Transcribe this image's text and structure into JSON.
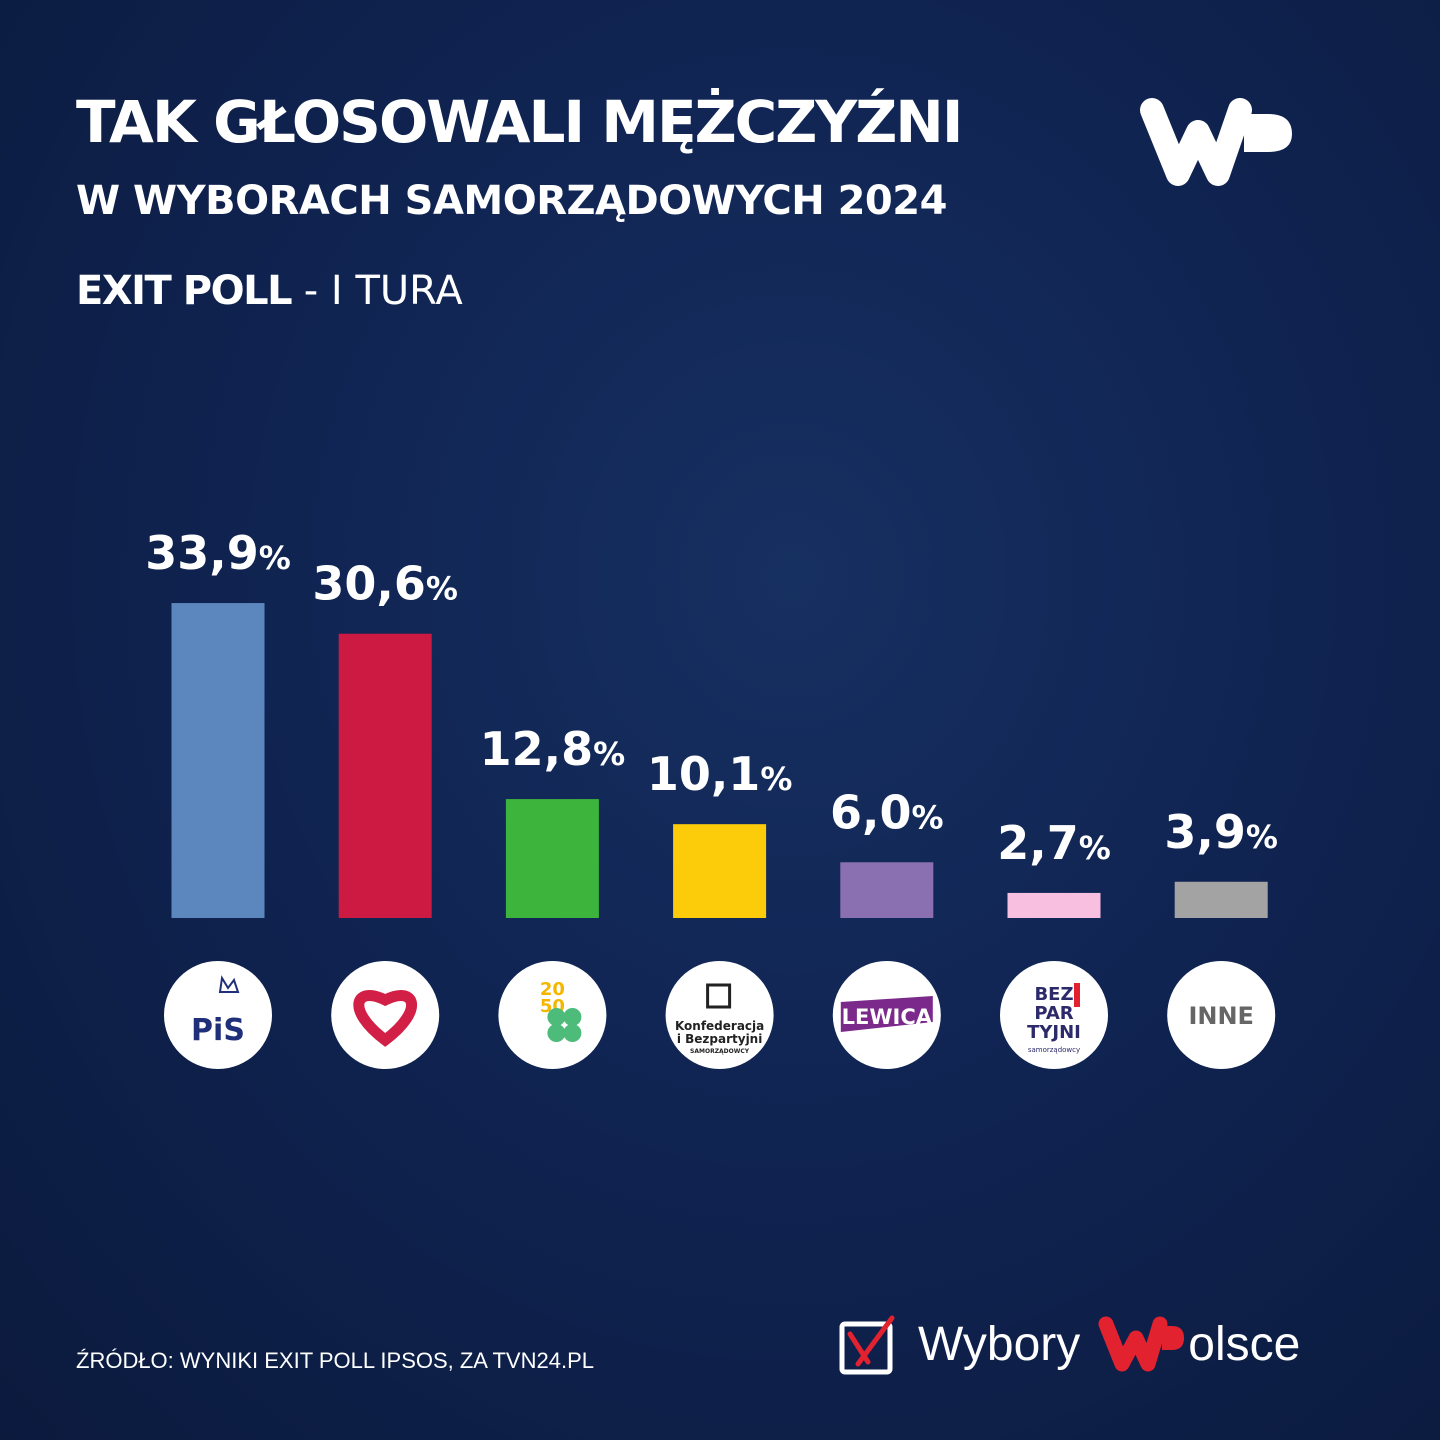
{
  "header": {
    "title": "TAK GŁOSOWALI MĘŻCZYŹNI",
    "subtitle": "W WYBORACH SAMORZĄDOWYCH  2024",
    "poll_bold": "EXIT POLL",
    "poll_rest": " - I TURA",
    "logo": "WP"
  },
  "chart_data": {
    "type": "bar",
    "title": "TAK GŁOSOWALI MĘŻCZYŹNI",
    "categories": [
      "PiS",
      "KO",
      "Trzecia Droga",
      "Konfederacja i Bezpartyjni Samorządowcy",
      "Lewica",
      "Bezpartyjni Samorządowcy",
      "INNE"
    ],
    "values": [
      33.9,
      30.6,
      12.8,
      10.1,
      6.0,
      2.7,
      3.9
    ],
    "labels": [
      "33,9",
      "30,6",
      "12,8",
      "10,1",
      "6,0",
      "2,7",
      "3,9"
    ],
    "unit": "%",
    "colors": [
      "#5b87be",
      "#cc1a43",
      "#3db53d",
      "#fccc0a",
      "#8a70b0",
      "#f9bfe0",
      "#a3a3a3"
    ],
    "ylim": [
      0,
      35
    ],
    "grid": false,
    "logo_text": [
      "PiS",
      "",
      "2050",
      "Konfederacja i Bezpartyjni SAMORZĄDOWCY",
      "LEWICA",
      "BEZ PAR TYJNI samorządowcy",
      "INNE"
    ]
  },
  "footer": {
    "source": "ŹRÓDŁO: WYNIKI EXIT POLL IPSOS, ZA TVN24.PL",
    "brand1": "Wybory",
    "brand2": "olsce",
    "brand2_logo": "WP"
  }
}
